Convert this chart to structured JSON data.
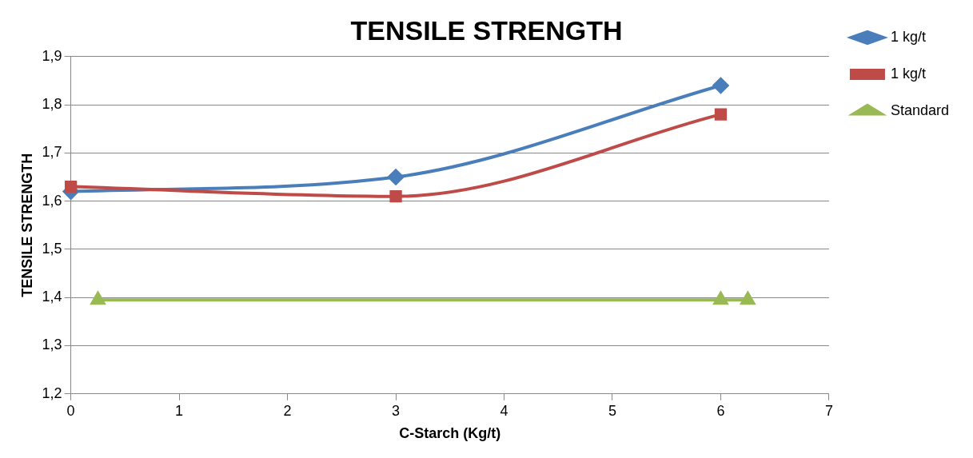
{
  "chart_data": {
    "type": "line",
    "title": "TENSILE STRENGTH",
    "xlabel": "C-Starch (Kg/t)",
    "ylabel": "TENSILE STRENGTH",
    "xlim": [
      0,
      7
    ],
    "xticks": [
      0,
      1,
      2,
      3,
      4,
      5,
      6,
      7
    ],
    "ylim": [
      1.2,
      1.9
    ],
    "yticks": [
      {
        "value": 1.2,
        "label": "1,2"
      },
      {
        "value": 1.3,
        "label": "1,3"
      },
      {
        "value": 1.4,
        "label": "1,4"
      },
      {
        "value": 1.5,
        "label": "1,5"
      },
      {
        "value": 1.6,
        "label": "1,6"
      },
      {
        "value": 1.7,
        "label": "1,7"
      },
      {
        "value": 1.8,
        "label": "1,8"
      },
      {
        "value": 1.9,
        "label": "1,9"
      }
    ],
    "grid": "y",
    "legend": "right",
    "series": [
      {
        "name": "1 kg/t",
        "color": "#4a7ebb",
        "marker": "diamond",
        "x": [
          0,
          3,
          6
        ],
        "values": [
          1.62,
          1.65,
          1.84
        ]
      },
      {
        "name": "1 kg/t",
        "color": "#be4b48",
        "marker": "square",
        "x": [
          0,
          3,
          6
        ],
        "values": [
          1.63,
          1.61,
          1.78
        ]
      },
      {
        "name": "Standard",
        "color": "#98b954",
        "marker": "triangle",
        "x": [
          0.25,
          6,
          6.25
        ],
        "values": [
          1.395,
          1.395,
          1.395
        ]
      }
    ]
  }
}
